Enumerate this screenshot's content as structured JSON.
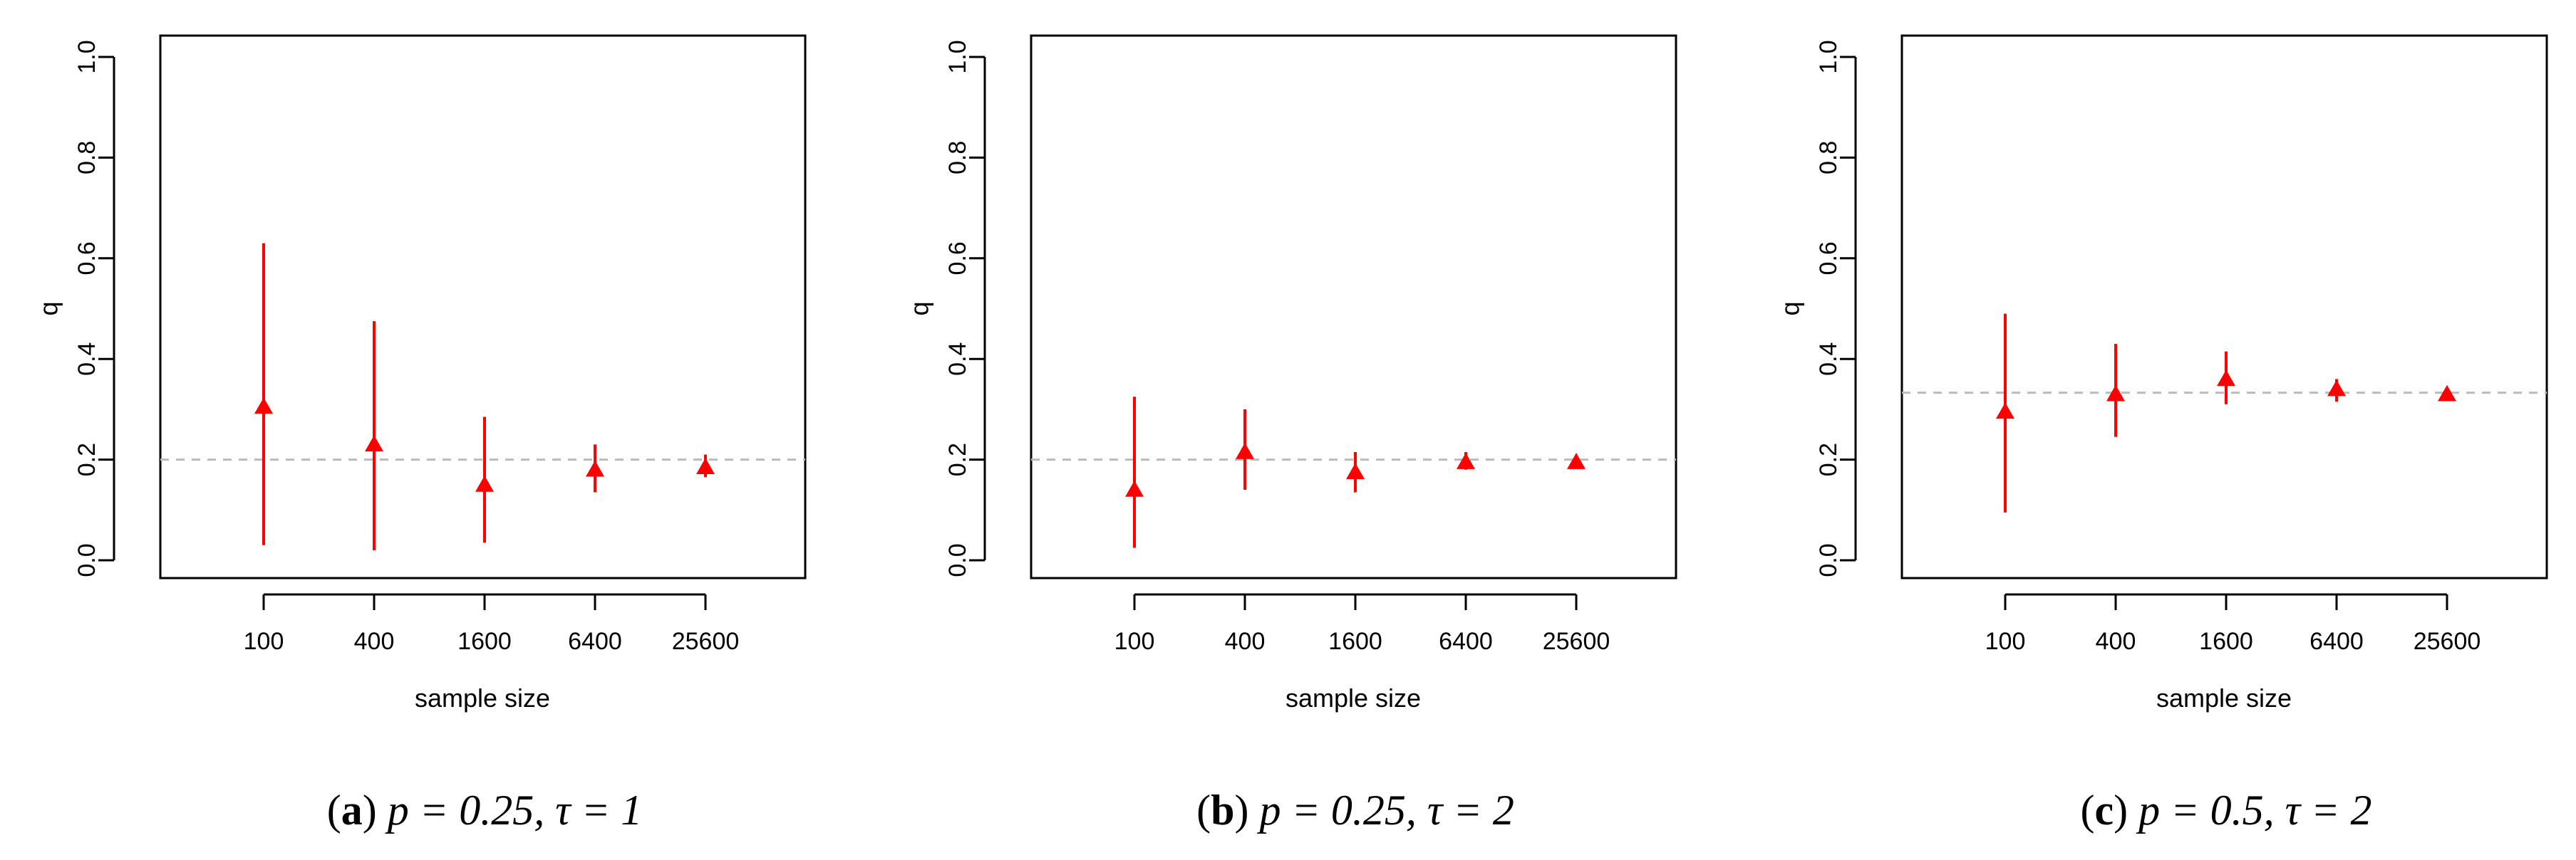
{
  "chart_data": [
    {
      "type": "scatter",
      "xlabel": "sample size",
      "ylabel": "q",
      "categories": [
        "100",
        "400",
        "1600",
        "6400",
        "25600"
      ],
      "yticks": [
        "0.0",
        "0.2",
        "0.4",
        "0.6",
        "0.8",
        "1.0"
      ],
      "ylim": [
        0,
        1
      ],
      "reference_line": 0.2,
      "marker_color": "#ff0000",
      "reference_color": "#bbbbbb",
      "points": [
        {
          "x": "100",
          "y": 0.305,
          "low": 0.03,
          "high": 0.63
        },
        {
          "x": "400",
          "y": 0.23,
          "low": 0.02,
          "high": 0.475
        },
        {
          "x": "1600",
          "y": 0.15,
          "low": 0.035,
          "high": 0.285
        },
        {
          "x": "6400",
          "y": 0.18,
          "low": 0.135,
          "high": 0.23
        },
        {
          "x": "25600",
          "y": 0.185,
          "low": 0.165,
          "high": 0.21
        }
      ],
      "caption": {
        "label": "a",
        "params": "p = 0.25, τ = 1"
      }
    },
    {
      "type": "scatter",
      "xlabel": "sample size",
      "ylabel": "q",
      "categories": [
        "100",
        "400",
        "1600",
        "6400",
        "25600"
      ],
      "yticks": [
        "0.0",
        "0.2",
        "0.4",
        "0.6",
        "0.8",
        "1.0"
      ],
      "ylim": [
        0,
        1
      ],
      "reference_line": 0.2,
      "marker_color": "#ff0000",
      "reference_color": "#bbbbbb",
      "points": [
        {
          "x": "100",
          "y": 0.14,
          "low": 0.025,
          "high": 0.325
        },
        {
          "x": "400",
          "y": 0.215,
          "low": 0.14,
          "high": 0.3
        },
        {
          "x": "1600",
          "y": 0.175,
          "low": 0.135,
          "high": 0.215
        },
        {
          "x": "6400",
          "y": 0.195,
          "low": 0.18,
          "high": 0.215
        },
        {
          "x": "25600",
          "y": 0.195,
          "low": 0.185,
          "high": 0.205
        }
      ],
      "caption": {
        "label": "b",
        "params": "p = 0.25, τ = 2"
      }
    },
    {
      "type": "scatter",
      "xlabel": "sample size",
      "ylabel": "q",
      "categories": [
        "100",
        "400",
        "1600",
        "6400",
        "25600"
      ],
      "yticks": [
        "0.0",
        "0.2",
        "0.4",
        "0.6",
        "0.8",
        "1.0"
      ],
      "ylim": [
        0,
        1
      ],
      "reference_line": 0.333,
      "marker_color": "#ff0000",
      "reference_color": "#bbbbbb",
      "points": [
        {
          "x": "100",
          "y": 0.295,
          "low": 0.095,
          "high": 0.49
        },
        {
          "x": "400",
          "y": 0.33,
          "low": 0.245,
          "high": 0.43
        },
        {
          "x": "1600",
          "y": 0.36,
          "low": 0.31,
          "high": 0.415
        },
        {
          "x": "6400",
          "y": 0.34,
          "low": 0.315,
          "high": 0.36
        },
        {
          "x": "25600",
          "y": 0.33,
          "low": 0.32,
          "high": 0.34
        }
      ],
      "caption": {
        "label": "c",
        "params": "p = 0.5, τ = 2"
      }
    }
  ]
}
